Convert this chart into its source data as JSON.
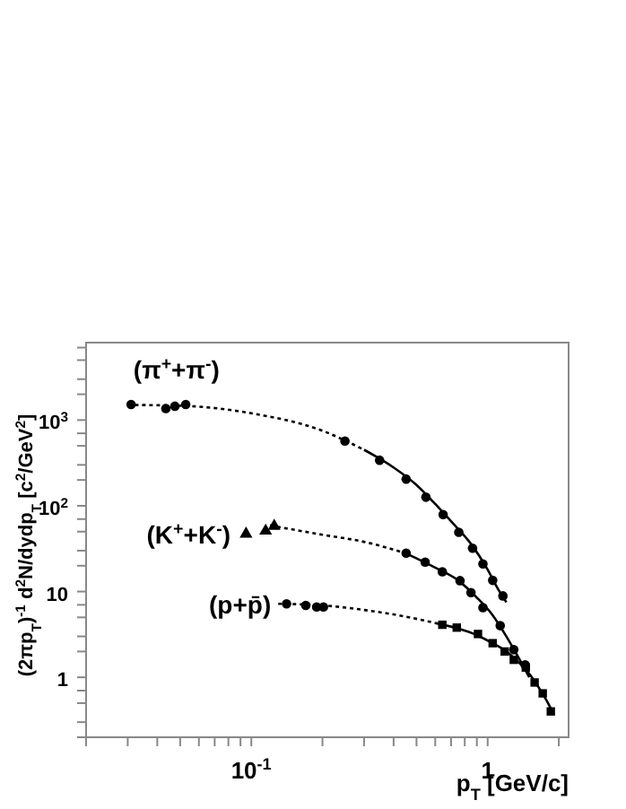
{
  "chart_data": {
    "type": "scatter",
    "xlabel": "p$_{T}$ [GeV/c]",
    "ylabel": "(2πp$_{T}$)$^{-1}$ d$^{2}$N/dydp$_{T}$ [c$^{2}$/GeV$^{2}$]",
    "log": "xy",
    "xlim": [
      0.02,
      2.2
    ],
    "ylim": [
      0.2,
      8000
    ],
    "xticks": [
      {
        "value": 0.02,
        "label": null
      },
      {
        "value": 0.03,
        "label": null
      },
      {
        "value": 0.04,
        "label": null
      },
      {
        "value": 0.05,
        "label": null
      },
      {
        "value": 0.06,
        "label": null
      },
      {
        "value": 0.07,
        "label": null
      },
      {
        "value": 0.08,
        "label": null
      },
      {
        "value": 0.09,
        "label": null
      },
      {
        "value": 0.1,
        "label": "10$^{-1}$"
      },
      {
        "value": 0.2,
        "label": null
      },
      {
        "value": 0.3,
        "label": null
      },
      {
        "value": 0.4,
        "label": null
      },
      {
        "value": 0.5,
        "label": null
      },
      {
        "value": 0.6,
        "label": null
      },
      {
        "value": 0.7,
        "label": null
      },
      {
        "value": 0.8,
        "label": null
      },
      {
        "value": 0.9,
        "label": null
      },
      1,
      {
        "value": 2,
        "label": null
      }
    ],
    "yticks": [
      {
        "value": 0.2,
        "label": null
      },
      {
        "value": 0.3,
        "label": null
      },
      {
        "value": 0.5,
        "label": null
      },
      {
        "value": 0.7,
        "label": null
      },
      1,
      {
        "value": 2,
        "label": null
      },
      {
        "value": 3,
        "label": null
      },
      {
        "value": 5,
        "label": null
      },
      {
        "value": 7,
        "label": null
      },
      10,
      {
        "value": 20,
        "label": null
      },
      {
        "value": 30,
        "label": null
      },
      {
        "value": 50,
        "label": null
      },
      {
        "value": 70,
        "label": null
      },
      {
        "value": 100,
        "label": "10$^{2}$"
      },
      {
        "value": 200,
        "label": null
      },
      {
        "value": 300,
        "label": null
      },
      {
        "value": 500,
        "label": null
      },
      {
        "value": 700,
        "label": null
      },
      {
        "value": 1000,
        "label": "10$^{3}$"
      },
      {
        "value": 2000,
        "label": null
      },
      {
        "value": 3000,
        "label": null
      },
      {
        "value": 5000,
        "label": null
      },
      {
        "value": 7000,
        "label": null
      }
    ],
    "grid": false,
    "series": [
      {
        "name": "(π$^{+}$+π$^{-}$)",
        "color": "#000000",
        "marker": "circle",
        "x": [
          0.031,
          0.0435,
          0.0475,
          0.0528
        ],
        "values": [
          1520,
          1360,
          1450,
          1520
        ]
      },
      {
        "color": "#000000",
        "marker": "circle",
        "x": [
          0.249,
          0.349,
          0.452,
          0.548,
          0.648,
          0.755,
          0.863,
          0.955,
          1.05,
          1.16
        ],
        "values": [
          570,
          340,
          205,
          126,
          79,
          49,
          32,
          21,
          13.5,
          8.9
        ]
      },
      {
        "name": "(K$^{+}$+K$^{-}$)",
        "color": "#000000",
        "marker": "triangle",
        "x": [
          0.095,
          0.115,
          0.125
        ],
        "values": [
          47,
          51,
          58
        ]
      },
      {
        "color": "#000000",
        "marker": "circle",
        "x": [
          0.452,
          0.544,
          0.643,
          0.764,
          0.85,
          0.955,
          1.13,
          1.29,
          1.44
        ],
        "values": [
          28,
          22,
          17,
          13.4,
          9.7,
          6.5,
          4.0,
          2.1,
          1.4
        ]
      },
      {
        "name": "(p+p̄)",
        "color": "#000000",
        "marker": "circle",
        "x": [
          0.141,
          0.17,
          0.189,
          0.202
        ],
        "values": [
          7.2,
          6.9,
          6.6,
          6.6
        ]
      },
      {
        "color": "#000000",
        "marker": "square",
        "x": [
          0.643,
          0.74,
          0.91,
          1.05,
          1.18,
          1.29,
          1.45,
          1.58,
          1.71,
          1.85
        ],
        "values": [
          4.1,
          3.8,
          3.2,
          2.5,
          2.0,
          1.6,
          1.3,
          0.87,
          0.65,
          0.4
        ]
      },
      {
        "type": "line",
        "color": "#000000",
        "line_style": "dotted",
        "x": [
          0.03,
          0.05,
          0.1,
          0.2,
          0.3
        ],
        "values": [
          1500,
          1470,
          1200,
          750,
          450
        ]
      },
      {
        "type": "line",
        "color": "#000000",
        "line_style": "solid",
        "x": [
          0.3,
          0.4,
          0.5,
          0.6,
          0.7,
          0.85,
          1.0,
          1.1,
          1.2
        ],
        "values": [
          450,
          280,
          175,
          105,
          66,
          36,
          18,
          11,
          7.5
        ]
      },
      {
        "type": "line",
        "color": "#000000",
        "line_style": "dotted",
        "x": [
          0.12,
          0.2,
          0.3,
          0.45
        ],
        "values": [
          59,
          46,
          38,
          28
        ]
      },
      {
        "type": "line",
        "color": "#000000",
        "line_style": "solid",
        "x": [
          0.45,
          0.6,
          0.75,
          0.9,
          1.05,
          1.2,
          1.35,
          1.5
        ],
        "values": [
          28,
          19,
          13.5,
          8.5,
          5.3,
          3.0,
          1.7,
          1.0
        ]
      },
      {
        "type": "line",
        "color": "#000000",
        "line_style": "dotted",
        "x": [
          0.13,
          0.2,
          0.3,
          0.45,
          0.6
        ],
        "values": [
          7.2,
          6.9,
          6.1,
          5.1,
          4.3
        ]
      },
      {
        "type": "line",
        "color": "#000000",
        "line_style": "solid",
        "x": [
          0.6,
          0.75,
          0.9,
          1.05,
          1.2,
          1.35,
          1.5,
          1.65,
          1.8,
          1.9
        ],
        "values": [
          4.3,
          3.7,
          3.1,
          2.5,
          2.0,
          1.5,
          1.1,
          0.75,
          0.5,
          0.37
        ]
      }
    ]
  }
}
